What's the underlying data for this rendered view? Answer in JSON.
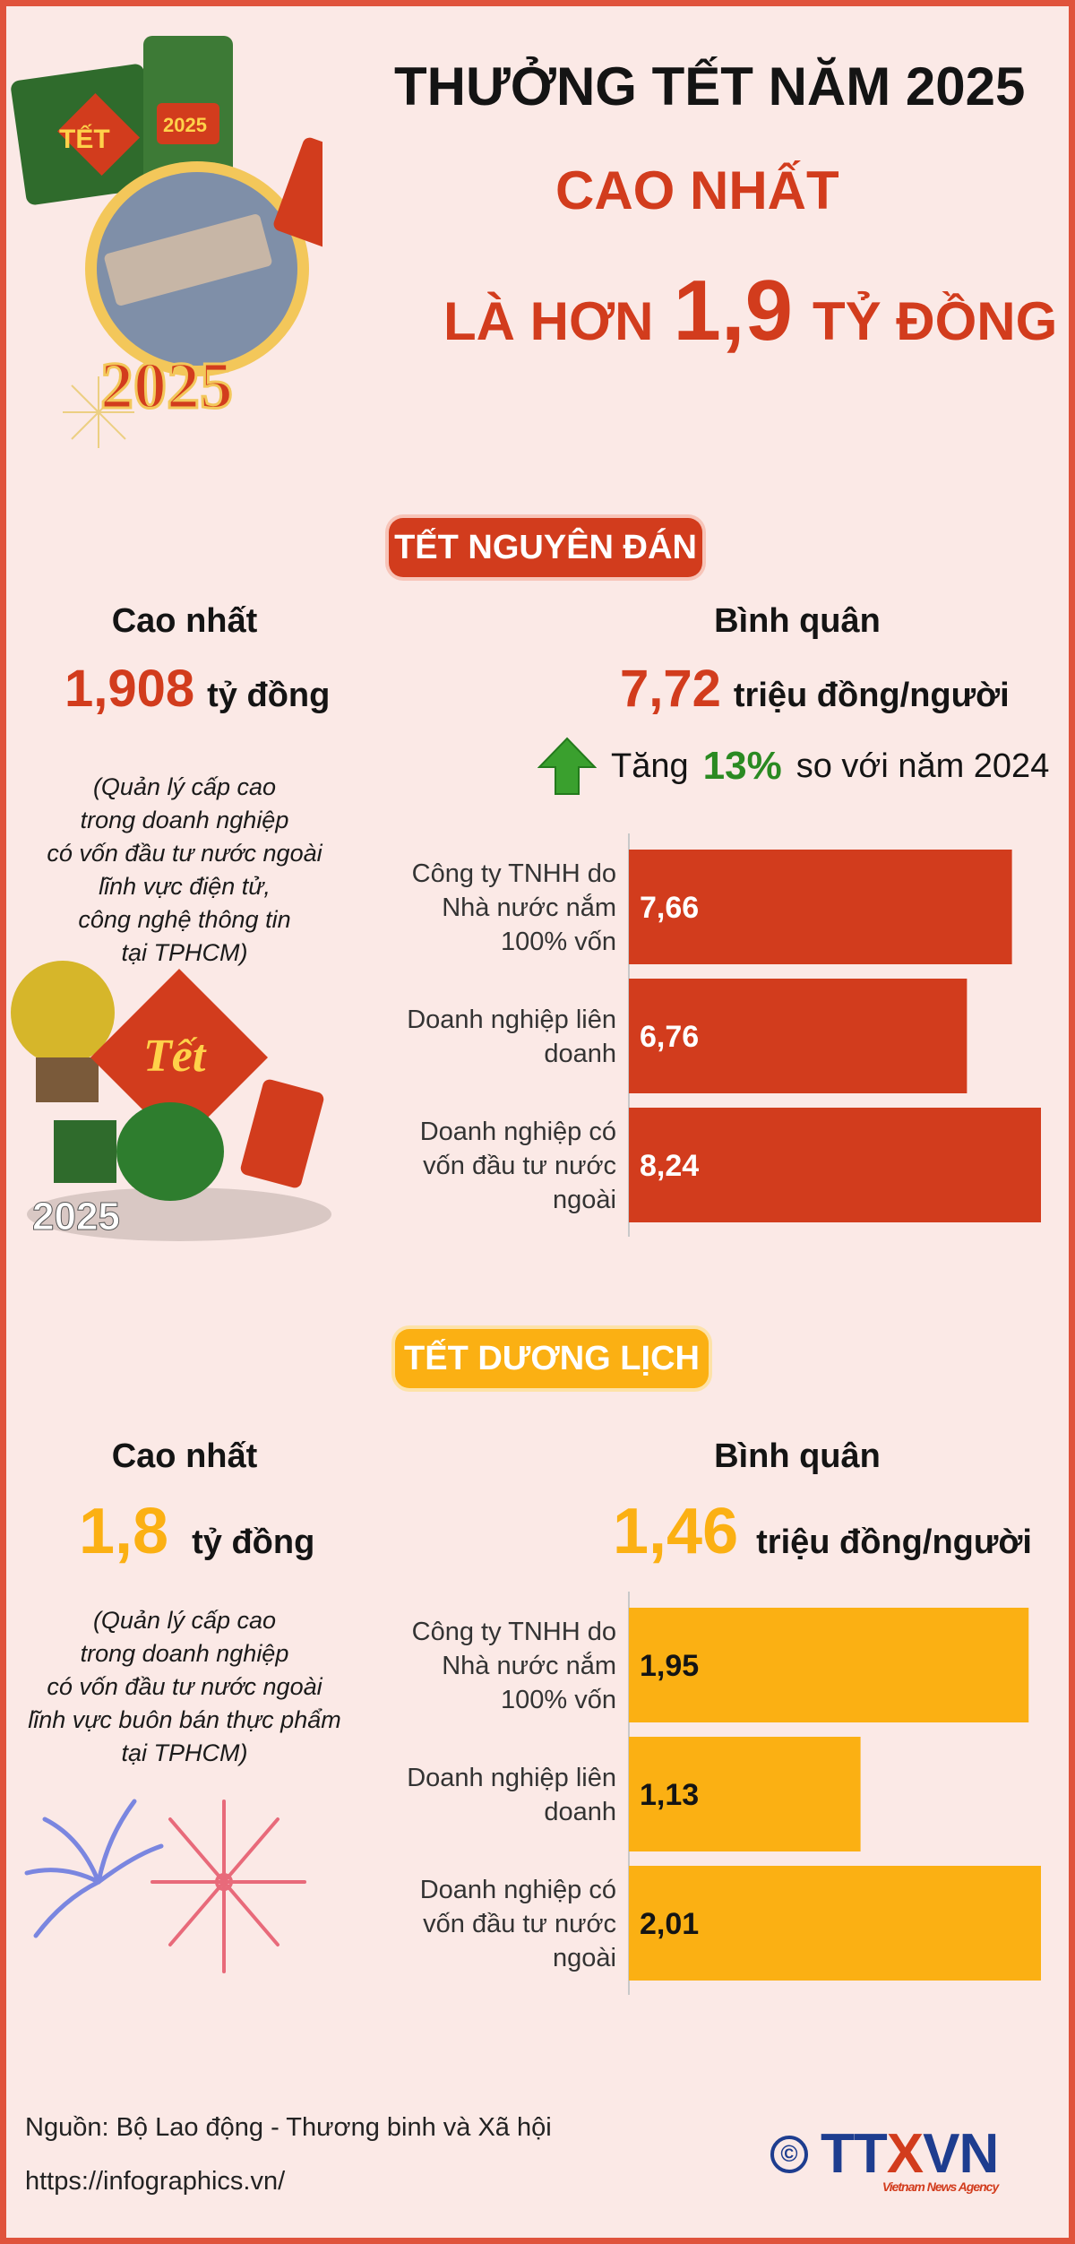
{
  "header": {
    "line1": "THƯỞNG TẾT NĂM 2025",
    "line2": "CAO NHẤT",
    "line3_prefix": "LÀ HƠN",
    "line3_number": "1,9",
    "line3_suffix": "TỶ ĐỒNG",
    "badge_tet": "TẾT",
    "badge_year": "2025",
    "year_big": "2025"
  },
  "section1": {
    "title": "TẾT NGUYÊN ĐÁN",
    "max_label": "Cao nhất",
    "max_value": "1,908",
    "max_unit": "tỷ đồng",
    "note": "(Quản lý cấp cao\ntrong doanh nghiệp\ncó vốn đầu tư nước ngoài\nlĩnh vực điện tử,\ncông nghệ thông tin\ntại TPHCM)",
    "avg_label": "Bình quân",
    "avg_value": "7,72",
    "avg_unit": "triệu đồng/người",
    "increase_prefix": "Tăng",
    "increase_pct": "13%",
    "increase_suffix": "so với năm 2024",
    "deco_tet": "Tết",
    "deco_year": "2025"
  },
  "section2": {
    "title": "TẾT DƯƠNG LỊCH",
    "max_label": "Cao nhất",
    "max_value": "1,8",
    "max_unit": "tỷ đồng",
    "note": "(Quản lý cấp cao\ntrong doanh nghiệp\ncó vốn đầu tư nước ngoài\nlĩnh vực buôn bán thực phẩm\ntại TPHCM)",
    "avg_label": "Bình quân",
    "avg_value": "1,46",
    "avg_unit": "triệu đồng/người"
  },
  "colors": {
    "red": "#d23c1d",
    "yellow": "#fbb013",
    "green": "#2a8a22",
    "frame": "#e0533c"
  },
  "chart_data": [
    {
      "type": "bar",
      "orientation": "horizontal",
      "categories": [
        "Công ty TNHH do Nhà nước nắm 100% vốn",
        "Doanh nghiệp liên doanh",
        "Doanh nghiệp có vốn đầu tư nước ngoài"
      ],
      "category_lines": [
        [
          "Công ty TNHH do",
          "Nhà nước nắm",
          "100% vốn"
        ],
        [
          "Doanh nghiệp liên",
          "doanh"
        ],
        [
          "Doanh nghiệp có",
          "vốn đầu tư nước",
          "ngoài"
        ]
      ],
      "values": [
        7.66,
        6.76,
        8.24
      ],
      "value_labels": [
        "7,66",
        "6,76",
        "8,24"
      ],
      "color": "#d23c1d",
      "label_color": "#ffffff",
      "xlim": [
        0,
        8.24
      ]
    },
    {
      "type": "bar",
      "orientation": "horizontal",
      "categories": [
        "Công ty TNHH do Nhà nước nắm 100% vốn",
        "Doanh nghiệp liên doanh",
        "Doanh nghiệp có vốn đầu tư nước ngoài"
      ],
      "category_lines": [
        [
          "Công ty TNHH do",
          "Nhà nước nắm",
          "100% vốn"
        ],
        [
          "Doanh nghiệp liên",
          "doanh"
        ],
        [
          "Doanh nghiệp có",
          "vốn đầu tư nước",
          "ngoài"
        ]
      ],
      "values": [
        1.95,
        1.13,
        2.01
      ],
      "value_labels": [
        "1,95",
        "1,13",
        "2,01"
      ],
      "color": "#fbb013",
      "label_color": "#141414",
      "xlim": [
        0,
        2.01
      ]
    }
  ],
  "footer": {
    "source": "Nguồn: Bộ Lao động - Thương binh và Xã hội",
    "url": "https://infographics.vn/",
    "copyright": "©",
    "logo_tt": "TT",
    "logo_x": "X",
    "logo_vn": "VN",
    "logo_sub": "Vietnam News Agency"
  }
}
